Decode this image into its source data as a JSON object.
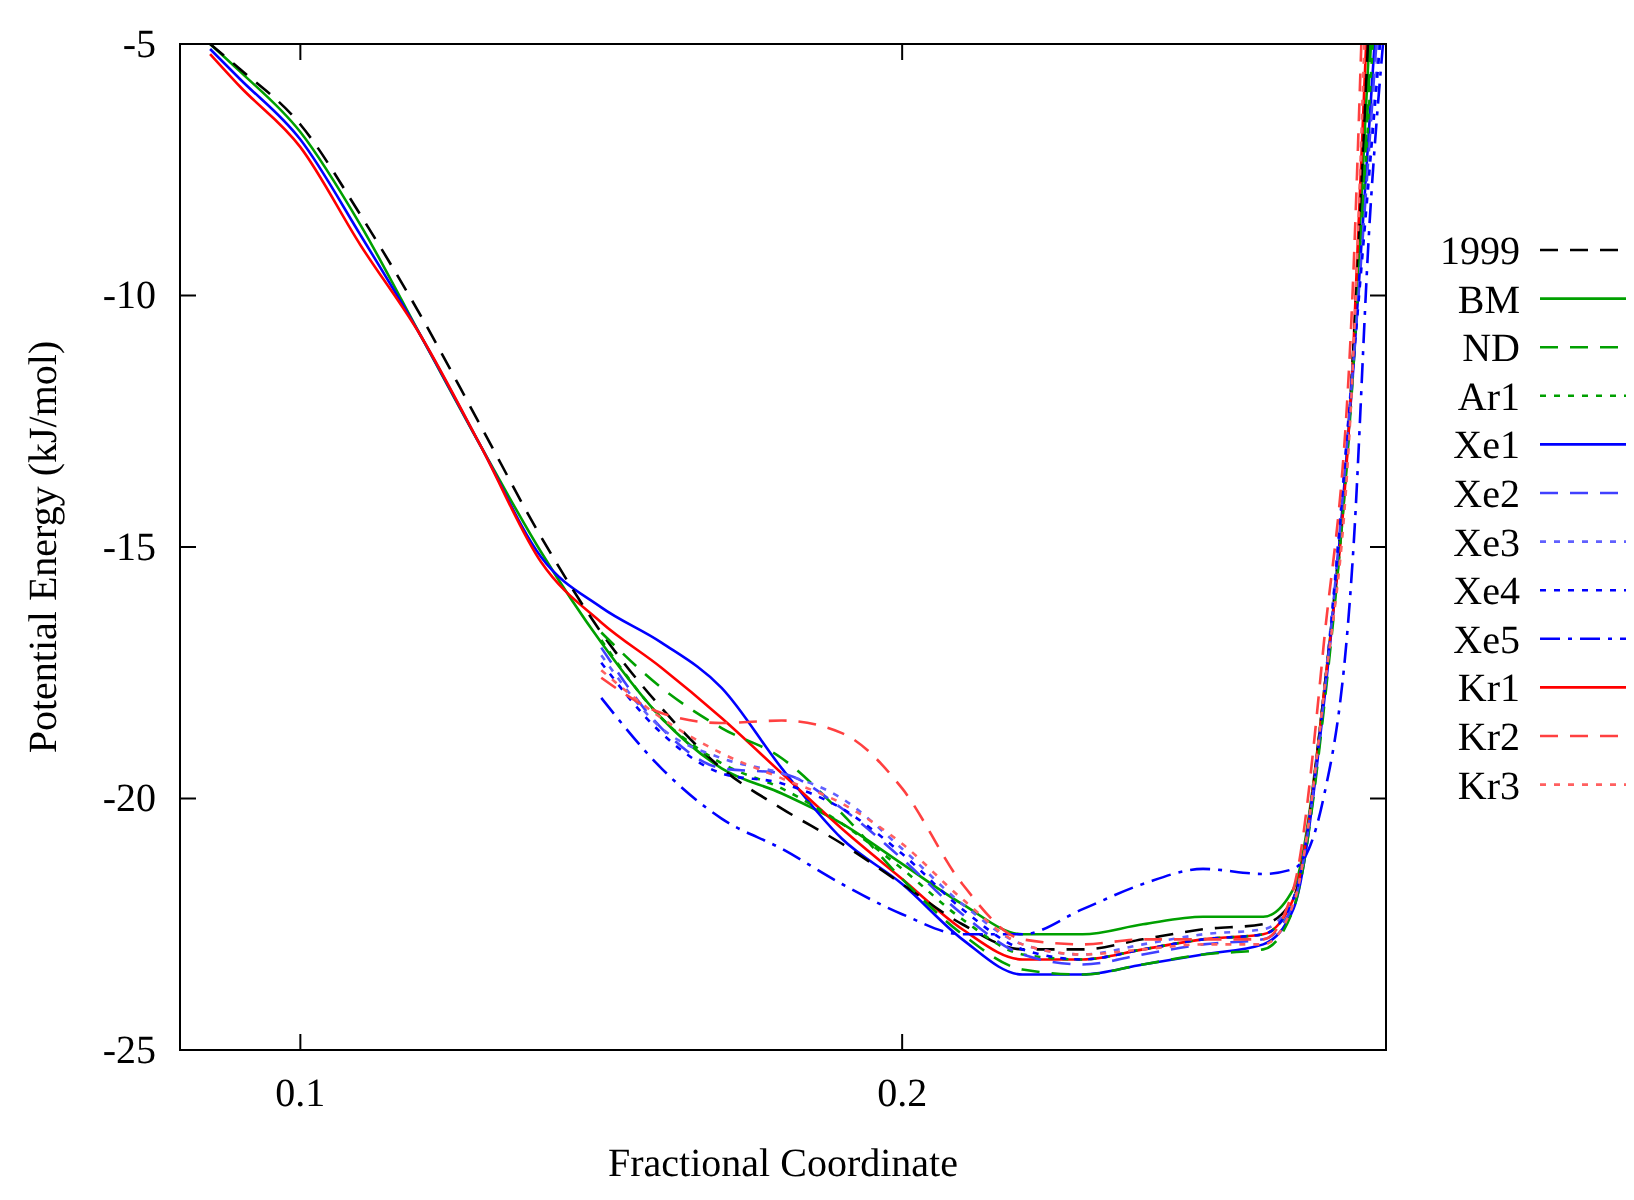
{
  "chart_data": {
    "type": "line",
    "xlabel": "Fractional Coordinate",
    "ylabel": "Potential Energy (kJ/mol)",
    "xlim": [
      0.08,
      0.2804
    ],
    "xticks": [
      0.1,
      0.2
    ],
    "ylim": [
      -25,
      -5
    ],
    "yticks": [
      -25,
      -20,
      -15,
      -10,
      -5
    ],
    "grid": false,
    "legend": "right",
    "marker": "none",
    "series": [
      {
        "name": "1999",
        "color": "#000000",
        "line_style": "dashed",
        "x": [
          0.085,
          0.09,
          0.1,
          0.11,
          0.12,
          0.13,
          0.14,
          0.15,
          0.16,
          0.17,
          0.18,
          0.19,
          0.2,
          0.21,
          0.22,
          0.23,
          0.24,
          0.25,
          0.26,
          0.265,
          0.27,
          0.275,
          0.2774
        ],
        "values": [
          -5.0,
          -5.5,
          -6.6,
          -8.4,
          -10.4,
          -12.6,
          -14.8,
          -16.7,
          -18.2,
          -19.4,
          -20.2,
          -20.9,
          -21.7,
          -22.5,
          -23.0,
          -23.0,
          -22.8,
          -22.6,
          -22.5,
          -22.0,
          -18.0,
          -11.0,
          -5.0
        ]
      },
      {
        "name": "BM",
        "color": "#00a000",
        "line_style": "solid",
        "x": [
          0.085,
          0.09,
          0.1,
          0.11,
          0.12,
          0.13,
          0.14,
          0.15,
          0.16,
          0.17,
          0.18,
          0.19,
          0.2,
          0.21,
          0.22,
          0.23,
          0.24,
          0.25,
          0.26,
          0.265,
          0.27,
          0.275,
          0.2776
        ],
        "values": [
          -5.0,
          -5.55,
          -6.75,
          -8.6,
          -10.8,
          -13.0,
          -15.1,
          -16.9,
          -18.4,
          -19.4,
          -19.9,
          -20.5,
          -21.3,
          -22.1,
          -22.7,
          -22.7,
          -22.5,
          -22.35,
          -22.35,
          -21.8,
          -18.0,
          -11.2,
          -5.0
        ]
      },
      {
        "name": "ND",
        "color": "#00a000",
        "line_style": "dashed",
        "x": [
          0.15,
          0.16,
          0.17,
          0.18,
          0.19,
          0.2,
          0.21,
          0.22,
          0.23,
          0.24,
          0.25,
          0.26,
          0.265,
          0.27,
          0.275,
          0.2779
        ],
        "values": [
          -16.7,
          -17.8,
          -18.6,
          -19.2,
          -20.3,
          -21.6,
          -22.7,
          -23.4,
          -23.5,
          -23.3,
          -23.1,
          -23.0,
          -22.2,
          -18.3,
          -11.4,
          -5.0
        ]
      },
      {
        "name": "Ar1",
        "color": "#00a000",
        "line_style": "dotted",
        "x": [
          0.15,
          0.16,
          0.17,
          0.18,
          0.19,
          0.2,
          0.21,
          0.22,
          0.23,
          0.24,
          0.25,
          0.26,
          0.265,
          0.27,
          0.275,
          0.2782
        ],
        "values": [
          -16.85,
          -18.4,
          -19.3,
          -19.8,
          -20.5,
          -21.4,
          -22.4,
          -23.1,
          -23.2,
          -23.0,
          -22.8,
          -22.7,
          -22.0,
          -18.0,
          -11.2,
          -5.0
        ]
      },
      {
        "name": "Xe1",
        "color": "#0000ff",
        "line_style": "solid",
        "x": [
          0.085,
          0.09,
          0.1,
          0.11,
          0.12,
          0.13,
          0.14,
          0.15,
          0.16,
          0.17,
          0.18,
          0.19,
          0.2,
          0.21,
          0.22,
          0.23,
          0.24,
          0.25,
          0.26,
          0.265,
          0.27,
          0.275,
          0.2785
        ],
        "values": [
          -5.1,
          -5.7,
          -6.9,
          -8.8,
          -10.8,
          -13.0,
          -15.2,
          -16.2,
          -16.9,
          -17.8,
          -19.4,
          -20.8,
          -21.7,
          -22.8,
          -23.5,
          -23.5,
          -23.3,
          -23.1,
          -22.9,
          -22.2,
          -18.2,
          -11.4,
          -5.0
        ]
      },
      {
        "name": "Xe2",
        "color": "#4040ff",
        "line_style": "dashed",
        "x": [
          0.15,
          0.16,
          0.17,
          0.18,
          0.19,
          0.2,
          0.21,
          0.22,
          0.23,
          0.24,
          0.25,
          0.26,
          0.265,
          0.27,
          0.275,
          0.2788
        ],
        "values": [
          -17.0,
          -18.6,
          -19.4,
          -19.5,
          -20.2,
          -21.2,
          -22.3,
          -23.1,
          -23.3,
          -23.1,
          -22.9,
          -22.8,
          -22.1,
          -18.1,
          -11.3,
          -5.0
        ]
      },
      {
        "name": "Xe3",
        "color": "#6060ff",
        "line_style": "dotted",
        "x": [
          0.15,
          0.16,
          0.17,
          0.18,
          0.19,
          0.2,
          0.21,
          0.22,
          0.23,
          0.24,
          0.25,
          0.26,
          0.265,
          0.27,
          0.275,
          0.2791
        ],
        "values": [
          -17.15,
          -18.6,
          -19.2,
          -19.5,
          -20.0,
          -21.0,
          -22.1,
          -22.9,
          -23.1,
          -22.9,
          -22.7,
          -22.6,
          -22.0,
          -18.0,
          -11.2,
          -5.0
        ]
      },
      {
        "name": "Xe4",
        "color": "#0000ff",
        "line_style": "dotted",
        "x": [
          0.15,
          0.16,
          0.17,
          0.18,
          0.19,
          0.2,
          0.21,
          0.22,
          0.23,
          0.24,
          0.25,
          0.26,
          0.265,
          0.27,
          0.275,
          0.2794
        ],
        "values": [
          -17.3,
          -18.7,
          -19.5,
          -19.7,
          -20.2,
          -21.1,
          -22.2,
          -23.0,
          -23.2,
          -23.0,
          -22.8,
          -22.7,
          -22.0,
          -18.1,
          -11.3,
          -5.0
        ]
      },
      {
        "name": "Xe5",
        "color": "#0000ff",
        "line_style": "dashdot",
        "x": [
          0.15,
          0.16,
          0.17,
          0.18,
          0.19,
          0.2,
          0.21,
          0.22,
          0.23,
          0.24,
          0.25,
          0.26,
          0.265,
          0.27,
          0.275,
          0.2777,
          0.2799
        ],
        "values": [
          -18.0,
          -19.4,
          -20.4,
          -21.0,
          -21.7,
          -22.3,
          -22.7,
          -22.7,
          -22.2,
          -21.7,
          -21.4,
          -21.5,
          -21.4,
          -20.0,
          -15.0,
          -8.5,
          -5.0
        ]
      },
      {
        "name": "Kr1",
        "color": "#ff0000",
        "line_style": "solid",
        "x": [
          0.085,
          0.09,
          0.1,
          0.11,
          0.12,
          0.13,
          0.14,
          0.15,
          0.16,
          0.17,
          0.18,
          0.19,
          0.2,
          0.21,
          0.22,
          0.23,
          0.24,
          0.25,
          0.26,
          0.265,
          0.27,
          0.275,
          0.2771
        ],
        "values": [
          -5.2,
          -5.85,
          -7.05,
          -9.0,
          -10.8,
          -13.0,
          -15.3,
          -16.5,
          -17.4,
          -18.4,
          -19.5,
          -20.6,
          -21.6,
          -22.6,
          -23.2,
          -23.2,
          -23.0,
          -22.8,
          -22.7,
          -22.0,
          -18.0,
          -11.0,
          -5.0
        ]
      },
      {
        "name": "Kr2",
        "color": "#ff4040",
        "line_style": "dashed",
        "x": [
          0.15,
          0.16,
          0.17,
          0.18,
          0.19,
          0.2,
          0.21,
          0.22,
          0.23,
          0.24,
          0.25,
          0.26,
          0.265,
          0.27,
          0.275,
          0.2763
        ],
        "values": [
          -17.6,
          -18.3,
          -18.5,
          -18.45,
          -18.7,
          -19.8,
          -21.7,
          -22.8,
          -22.9,
          -22.8,
          -22.8,
          -22.8,
          -21.8,
          -17.0,
          -9.5,
          -5.0
        ]
      },
      {
        "name": "Kr3",
        "color": "#ff6060",
        "line_style": "dotted",
        "x": [
          0.15,
          0.16,
          0.17,
          0.18,
          0.19,
          0.2,
          0.21,
          0.22,
          0.23,
          0.24,
          0.25,
          0.26,
          0.265,
          0.27,
          0.275,
          0.2768
        ],
        "values": [
          -17.45,
          -18.4,
          -19.1,
          -19.6,
          -20.1,
          -20.9,
          -22.0,
          -22.9,
          -23.1,
          -23.0,
          -22.9,
          -22.9,
          -22.1,
          -18.0,
          -11.1,
          -5.0
        ]
      }
    ]
  }
}
